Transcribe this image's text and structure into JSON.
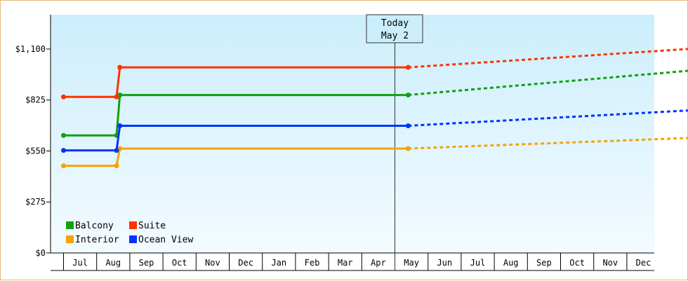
{
  "chart_data": {
    "type": "line",
    "today_label": [
      "Today",
      "May 2"
    ],
    "x_labels": [
      "Jul",
      "Aug",
      "Sep",
      "Oct",
      "Nov",
      "Dec",
      "Jan",
      "Feb",
      "Mar",
      "Apr",
      "May",
      "Jun",
      "Jul",
      "Aug",
      "Sep",
      "Oct",
      "Nov",
      "Dec"
    ],
    "y_ticks": [
      {
        "value": 0,
        "label": "$0"
      },
      {
        "value": 275,
        "label": "$275"
      },
      {
        "value": 550,
        "label": "$550"
      },
      {
        "value": 825,
        "label": "$825"
      },
      {
        "value": 1100,
        "label": "$1,100"
      }
    ],
    "ylim": [
      0,
      1285
    ],
    "grid": false,
    "legend_position": "bottom-left",
    "series": [
      {
        "name": "Balcony",
        "color": "#11a011",
        "history": [
          [
            -0.5,
            634
          ],
          [
            1.1,
            634
          ],
          [
            1.2,
            852
          ],
          [
            9.9,
            852
          ]
        ],
        "forecast": [
          [
            9.9,
            852
          ],
          [
            18.5,
            985
          ]
        ]
      },
      {
        "name": "Suite",
        "color": "#ff3300",
        "history": [
          [
            -0.5,
            842
          ],
          [
            1.1,
            842
          ],
          [
            1.2,
            1001
          ],
          [
            9.9,
            1001
          ]
        ],
        "forecast": [
          [
            9.9,
            1001
          ],
          [
            18.5,
            1102
          ]
        ]
      },
      {
        "name": "Interior",
        "color": "#f5a300",
        "history": [
          [
            -0.5,
            470
          ],
          [
            1.1,
            470
          ],
          [
            1.2,
            563
          ],
          [
            9.9,
            563
          ]
        ],
        "forecast": [
          [
            9.9,
            563
          ],
          [
            18.5,
            621
          ]
        ]
      },
      {
        "name": "Ocean View",
        "color": "#0033ff",
        "history": [
          [
            -0.5,
            553
          ],
          [
            1.1,
            553
          ],
          [
            1.2,
            686
          ],
          [
            9.9,
            686
          ]
        ],
        "forecast": [
          [
            9.9,
            686
          ],
          [
            18.5,
            770
          ]
        ]
      }
    ]
  }
}
